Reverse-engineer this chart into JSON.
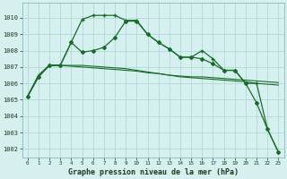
{
  "title": "Graphe pression niveau de la mer (hPa)",
  "bg_color": "#d6f0f0",
  "grid_color": "#b0d8d8",
  "line_color": "#1a6b2a",
  "xlim": [
    -0.5,
    23.5
  ],
  "ylim": [
    1001.5,
    1010.9
  ],
  "yticks": [
    1002,
    1003,
    1004,
    1005,
    1006,
    1007,
    1008,
    1009,
    1010
  ],
  "xticks": [
    0,
    1,
    2,
    3,
    4,
    5,
    6,
    7,
    8,
    9,
    10,
    11,
    12,
    13,
    14,
    15,
    16,
    17,
    18,
    19,
    20,
    21,
    22,
    23
  ],
  "series1_x": [
    0,
    1,
    2,
    3,
    4,
    5,
    6,
    7,
    8,
    9,
    10,
    11,
    12,
    13,
    14,
    15,
    16,
    17,
    18,
    19,
    20,
    21,
    22,
    23
  ],
  "series1_y": [
    1005.2,
    1006.4,
    1007.1,
    1007.1,
    1008.5,
    1009.9,
    1010.15,
    1010.15,
    1010.15,
    1009.85,
    1009.85,
    1009.0,
    1008.5,
    1008.1,
    1007.6,
    1007.6,
    1008.0,
    1007.5,
    1006.8,
    1006.8,
    1006.0,
    1006.0,
    1003.2,
    1001.8
  ],
  "series2_x": [
    0,
    1,
    2,
    3,
    4,
    5,
    6,
    7,
    8,
    9,
    10,
    11,
    12,
    13,
    14,
    15,
    16,
    17,
    18,
    19,
    20,
    21,
    22,
    23
  ],
  "series2_y": [
    1005.2,
    1006.4,
    1007.1,
    1007.1,
    1008.5,
    1007.9,
    1008.0,
    1008.2,
    1008.8,
    1009.8,
    1009.8,
    1009.0,
    1008.5,
    1008.1,
    1007.6,
    1007.6,
    1007.5,
    1007.2,
    1006.8,
    1006.8,
    1006.0,
    1004.8,
    1003.2,
    1001.8
  ],
  "series3_x": [
    0,
    1,
    2,
    3,
    4,
    5,
    6,
    7,
    8,
    9,
    10,
    11,
    12,
    13,
    14,
    15,
    16,
    17,
    18,
    19,
    20,
    21,
    22,
    23
  ],
  "series3_y": [
    1005.2,
    1006.5,
    1007.1,
    1007.1,
    1007.05,
    1007.0,
    1006.95,
    1006.9,
    1006.85,
    1006.8,
    1006.75,
    1006.65,
    1006.6,
    1006.5,
    1006.4,
    1006.35,
    1006.3,
    1006.25,
    1006.2,
    1006.15,
    1006.1,
    1006.0,
    1005.95,
    1005.9
  ],
  "series4_x": [
    0,
    1,
    2,
    3,
    4,
    5,
    6,
    7,
    8,
    9,
    10,
    11,
    12,
    13,
    14,
    15,
    16,
    17,
    18,
    19,
    20,
    21,
    22,
    23
  ],
  "series4_y": [
    1005.2,
    1006.5,
    1007.1,
    1007.1,
    1007.1,
    1007.1,
    1007.05,
    1007.0,
    1006.95,
    1006.9,
    1006.8,
    1006.7,
    1006.6,
    1006.5,
    1006.45,
    1006.4,
    1006.4,
    1006.35,
    1006.3,
    1006.25,
    1006.2,
    1006.15,
    1006.1,
    1006.05
  ]
}
